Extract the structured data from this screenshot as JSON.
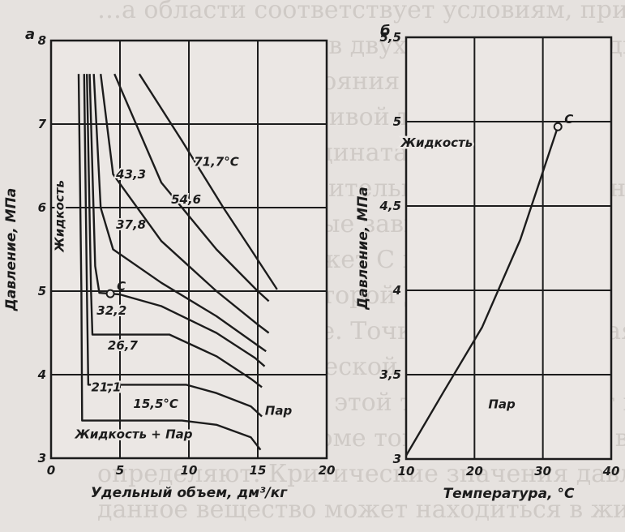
{
  "background_text": [
    "…а области соответствует условиям, при которой",
    "сосуществование в двух состояниях жидком и газ",
    "двухфазного состояния вещества. Пу",
    "С пересечения кривой точки С двухфаз",
    "необходимо координатах давлений",
    "температур относительных изотерм, одной",
    "ки. С лежит кривые зависимости",
    "удельный или может С изменения",
    "температуре в которой давление",
    "жидкое состояние. Точка С (критическая)",
    "называют критической точкой",
    "соответствующий этой точке, называют паро",
    "критическим. Кроме того, для каждого вещества",
    "определяют. Критические значения давления и",
    "данное вещество может находиться в жидком"
  ],
  "chart_data": [
    {
      "panel_label": "а",
      "type": "line",
      "xlabel": "Удельный объем, дм³/кг",
      "ylabel": "Давление, МПа",
      "xlim": [
        0,
        20
      ],
      "ylim": [
        3,
        8
      ],
      "grid": true,
      "x_ticks": [
        "0",
        "5",
        "10",
        "15",
        "20"
      ],
      "y_ticks": [
        "3",
        "4",
        "5",
        "6",
        "7",
        "8"
      ],
      "region_labels": [
        {
          "text": "Жидкость",
          "x": 0.9,
          "y": 5.9,
          "rotate": -90
        },
        {
          "text": "Жидкость + Пар",
          "x": 6.0,
          "y": 3.24
        },
        {
          "text": "Пар",
          "x": 16.5,
          "y": 3.52
        }
      ],
      "critical_point": {
        "label": "C",
        "x": 4.3,
        "y": 4.97
      },
      "series": [
        {
          "name": "15,5°C",
          "label_x": 7.6,
          "label_y": 3.6,
          "points": [
            [
              2.0,
              7.6
            ],
            [
              2.2,
              5.0
            ],
            [
              2.25,
              3.45
            ],
            [
              9.5,
              3.45
            ],
            [
              12.0,
              3.4
            ],
            [
              14.5,
              3.25
            ],
            [
              15.2,
              3.1
            ]
          ]
        },
        {
          "name": "21,1",
          "label_x": 4.0,
          "label_y": 3.8,
          "points": [
            [
              2.4,
              7.6
            ],
            [
              2.6,
              5.0
            ],
            [
              2.7,
              3.88
            ],
            [
              9.8,
              3.88
            ],
            [
              12.0,
              3.78
            ],
            [
              14.5,
              3.62
            ],
            [
              15.3,
              3.5
            ]
          ]
        },
        {
          "name": "26,7",
          "label_x": 5.2,
          "label_y": 4.3,
          "points": [
            [
              2.6,
              7.6
            ],
            [
              2.9,
              5.0
            ],
            [
              3.0,
              4.48
            ],
            [
              8.6,
              4.48
            ],
            [
              12.0,
              4.22
            ],
            [
              14.5,
              3.95
            ],
            [
              15.3,
              3.85
            ]
          ]
        },
        {
          "name": "32,2",
          "label_x": 4.4,
          "label_y": 4.72,
          "points": [
            [
              2.8,
              7.6
            ],
            [
              3.2,
              5.3
            ],
            [
              3.5,
              4.98
            ],
            [
              5.0,
              4.96
            ],
            [
              8.0,
              4.82
            ],
            [
              12.0,
              4.5
            ],
            [
              14.8,
              4.2
            ],
            [
              15.5,
              4.1
            ]
          ]
        },
        {
          "name": "37,8",
          "label_x": 5.8,
          "label_y": 5.75,
          "points": [
            [
              3.1,
              7.6
            ],
            [
              3.6,
              6.0
            ],
            [
              4.5,
              5.5
            ],
            [
              8.0,
              5.1
            ],
            [
              12.0,
              4.7
            ],
            [
              15.0,
              4.35
            ],
            [
              15.6,
              4.28
            ]
          ]
        },
        {
          "name": "43,3",
          "label_x": 5.8,
          "label_y": 6.35,
          "points": [
            [
              3.6,
              7.6
            ],
            [
              4.5,
              6.4
            ],
            [
              8.0,
              5.6
            ],
            [
              12.0,
              5.0
            ],
            [
              15.0,
              4.6
            ],
            [
              15.8,
              4.5
            ]
          ]
        },
        {
          "name": "54,6",
          "label_x": 9.8,
          "label_y": 6.05,
          "points": [
            [
              4.6,
              7.6
            ],
            [
              8.0,
              6.3
            ],
            [
              12.0,
              5.5
            ],
            [
              15.0,
              5.0
            ],
            [
              15.8,
              4.88
            ]
          ]
        },
        {
          "name": "71,7°C",
          "label_x": 12.0,
          "label_y": 6.5,
          "points": [
            [
              6.4,
              7.6
            ],
            [
              9.5,
              6.8
            ],
            [
              12.5,
              6.0
            ],
            [
              14.5,
              5.5
            ],
            [
              16.4,
              5.02
            ]
          ]
        }
      ]
    },
    {
      "panel_label": "б",
      "type": "line",
      "xlabel": "Температура, °C",
      "ylabel": "Давление, МПа",
      "xlim": [
        10,
        40
      ],
      "ylim": [
        3,
        5.5
      ],
      "grid": true,
      "x_ticks": [
        "10",
        "20",
        "30",
        "40"
      ],
      "y_ticks": [
        "3",
        "3,5",
        "4",
        "4,5",
        "5",
        "5,5"
      ],
      "region_labels": [
        {
          "text": "Жидкость",
          "x": 14.5,
          "y": 4.85
        },
        {
          "text": "Пар",
          "x": 24.0,
          "y": 3.3
        }
      ],
      "critical_point": {
        "label": "C",
        "x": 32.2,
        "y": 4.97
      },
      "series": [
        {
          "name": "",
          "points": [
            [
              10.0,
              3.02
            ],
            [
              15.5,
              3.4
            ],
            [
              21.1,
              3.78
            ],
            [
              26.7,
              4.3
            ],
            [
              32.2,
              4.97
            ]
          ]
        }
      ]
    }
  ]
}
